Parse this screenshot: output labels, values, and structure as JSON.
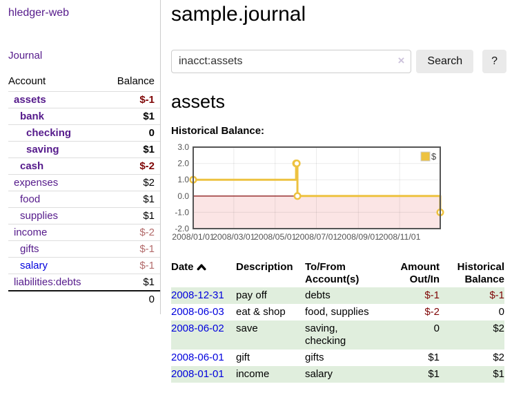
{
  "app": {
    "brand": "hledger-web"
  },
  "sidebar": {
    "journal_link": "Journal",
    "accounts": {
      "header_account": "Account",
      "header_balance": "Balance",
      "rows": [
        {
          "name": "assets",
          "balance": "$-1",
          "indent": 1,
          "bold": true,
          "link_style": "visited"
        },
        {
          "name": "bank",
          "balance": "$1",
          "indent": 2,
          "bold": true,
          "link_style": "visited"
        },
        {
          "name": "checking",
          "balance": "0",
          "indent": 3,
          "bold": true,
          "link_style": "visited"
        },
        {
          "name": "saving",
          "balance": "$1",
          "indent": 3,
          "bold": true,
          "link_style": "visited"
        },
        {
          "name": "cash",
          "balance": "$-2",
          "indent": 2,
          "bold": true,
          "link_style": "visited"
        },
        {
          "name": "expenses",
          "balance": "$2",
          "indent": 1,
          "bold": false,
          "link_style": "visited"
        },
        {
          "name": "food",
          "balance": "$1",
          "indent": 2,
          "bold": false,
          "link_style": "visited"
        },
        {
          "name": "supplies",
          "balance": "$1",
          "indent": 2,
          "bold": false,
          "link_style": "visited"
        },
        {
          "name": "income",
          "balance": "$-2",
          "indent": 1,
          "bold": false,
          "link_style": "visited"
        },
        {
          "name": "gifts",
          "balance": "$-1",
          "indent": 2,
          "bold": false,
          "link_style": "visited"
        },
        {
          "name": "salary",
          "balance": "$-1",
          "indent": 2,
          "bold": false,
          "link_style": "unvisited"
        },
        {
          "name": "liabilities:debts",
          "balance": "$1",
          "indent": 1,
          "bold": false,
          "link_style": "visited"
        }
      ],
      "total": "0"
    }
  },
  "main": {
    "title": "sample.journal",
    "search": {
      "value": "inacct:assets",
      "clear_label": "×",
      "search_button": "Search",
      "help_button": "?"
    },
    "account_heading": "assets",
    "section_label": "Historical Balance:"
  },
  "chart_data": {
    "type": "line",
    "title": "Historical Balance",
    "steps": true,
    "series": [
      {
        "name": "$",
        "color": "#edc240",
        "points": [
          [
            "2008-01-01",
            1
          ],
          [
            "2008-06-01",
            2
          ],
          [
            "2008-06-02",
            2
          ],
          [
            "2008-06-03",
            0
          ],
          [
            "2008-12-31",
            -1
          ]
        ]
      }
    ],
    "xlim": [
      "2008-01-01",
      "2008-12-31"
    ],
    "ylim": [
      -2,
      3
    ],
    "x_ticks": [
      "2008/01/01",
      "2008/03/01",
      "2008/05/01",
      "2008/07/01",
      "2008/09/01",
      "2008/11/01"
    ],
    "y_ticks": [
      3,
      2,
      1,
      0,
      -1,
      -2
    ],
    "y_tick_labels": [
      "3.0",
      "2.0",
      "1.0",
      "0.0",
      "-1.0",
      "-2.0"
    ],
    "grid": true,
    "legend_position": "top-right",
    "legend_label": "$",
    "negative_region_color": "#fbe5e5",
    "zero_line_color": "#8e1f1f",
    "border_color": "#545454",
    "tick_label_color": "#545454"
  },
  "register": {
    "headers": {
      "date": "Date",
      "description": "Description",
      "tofrom": "To/From Account(s)",
      "amount": "Amount Out/In",
      "balance": "Historical Balance"
    },
    "rows": [
      {
        "date": "2008-12-31",
        "description": "pay off",
        "accounts": "debts",
        "amount": "$-1",
        "balance": "$-1"
      },
      {
        "date": "2008-06-03",
        "description": "eat & shop",
        "accounts": "food, supplies",
        "amount": "$-2",
        "balance": "0"
      },
      {
        "date": "2008-06-02",
        "description": "save",
        "accounts": "saving, checking",
        "amount": "0",
        "balance": "$2"
      },
      {
        "date": "2008-06-01",
        "description": "gift",
        "accounts": "gifts",
        "amount": "$1",
        "balance": "$2"
      },
      {
        "date": "2008-01-01",
        "description": "income",
        "accounts": "salary",
        "amount": "$1",
        "balance": "$1"
      }
    ]
  },
  "colors": {
    "link_visited": "#551a8b",
    "link_unvisited": "#0000dd",
    "negative_strong": "#7f0606",
    "negative_soft": "#b36b6b",
    "row_stripe_green": "#e0eedd",
    "series_gold": "#edc240"
  }
}
